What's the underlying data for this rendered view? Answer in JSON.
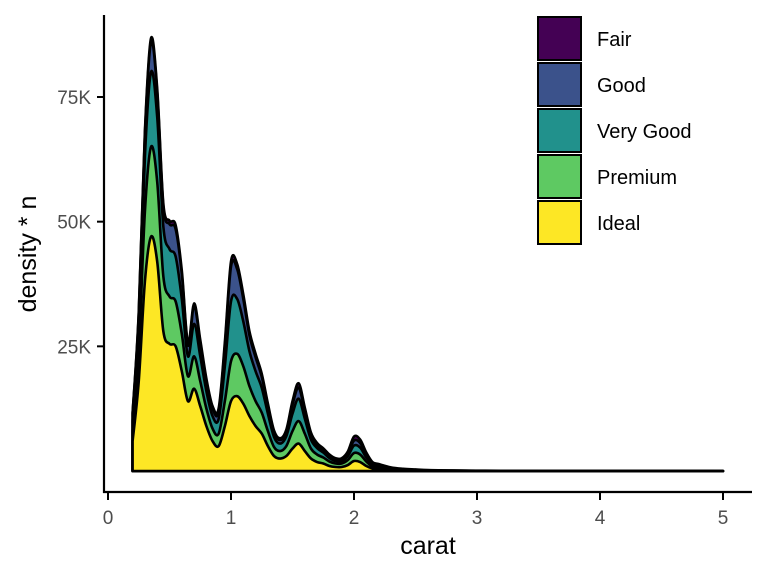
{
  "chart_data": {
    "type": "area",
    "stacked": true,
    "xlabel": "carat",
    "ylabel": "density * n",
    "xlim": [
      0,
      5.25
    ],
    "ylim": [
      -2000,
      91000
    ],
    "xticks": [
      0,
      1,
      2,
      3,
      4,
      5
    ],
    "xtick_labels": [
      "0",
      "1",
      "2",
      "3",
      "4",
      "5"
    ],
    "yticks": [
      25000,
      50000,
      75000
    ],
    "ytick_labels": [
      "25K",
      "50K",
      "75K"
    ],
    "grid": false,
    "legend_position": "top-right",
    "x": [
      0.2,
      0.25,
      0.3,
      0.35,
      0.4,
      0.45,
      0.5,
      0.55,
      0.6,
      0.65,
      0.7,
      0.75,
      0.8,
      0.85,
      0.9,
      0.95,
      1.0,
      1.05,
      1.1,
      1.15,
      1.2,
      1.25,
      1.3,
      1.35,
      1.4,
      1.45,
      1.5,
      1.55,
      1.6,
      1.65,
      1.7,
      1.75,
      1.8,
      1.85,
      1.9,
      1.95,
      2.0,
      2.05,
      2.1,
      2.15,
      2.2,
      2.3,
      2.4,
      2.5,
      2.6,
      2.8,
      3.0,
      3.2,
      3.5,
      4.0,
      4.5,
      5.0
    ],
    "series": [
      {
        "name": "Ideal",
        "color": "#fde725",
        "values": [
          6000,
          18000,
          38000,
          47000,
          42000,
          28000,
          25500,
          25000,
          20000,
          14000,
          16500,
          13000,
          9000,
          6000,
          5000,
          9000,
          14000,
          15000,
          13500,
          11000,
          9000,
          7500,
          5000,
          3000,
          2500,
          3000,
          4500,
          5500,
          4000,
          2500,
          1800,
          1500,
          1000,
          800,
          800,
          1200,
          2000,
          1800,
          1000,
          500,
          400,
          200,
          120,
          80,
          40,
          20,
          10,
          5,
          0,
          0,
          0,
          0
        ]
      },
      {
        "name": "Premium",
        "color": "#5ec962",
        "values": [
          2000,
          6000,
          14000,
          18000,
          16000,
          11000,
          9500,
          9000,
          7500,
          5000,
          6500,
          5000,
          3500,
          2500,
          2500,
          5000,
          8000,
          8500,
          7500,
          6000,
          5000,
          4200,
          3000,
          1800,
          1500,
          2000,
          3500,
          4500,
          3500,
          2000,
          1500,
          1200,
          900,
          700,
          700,
          1000,
          1600,
          1500,
          900,
          400,
          300,
          150,
          90,
          60,
          30,
          20,
          10,
          5,
          0,
          0,
          0,
          0
        ]
      },
      {
        "name": "Very Good",
        "color": "#21918c",
        "values": [
          2000,
          5000,
          11000,
          15000,
          13000,
          10000,
          9500,
          9000,
          7000,
          4000,
          6500,
          5000,
          3500,
          2500,
          3000,
          7000,
          12000,
          11000,
          9000,
          7000,
          6000,
          5000,
          3500,
          2000,
          1500,
          2000,
          3500,
          4500,
          3000,
          1800,
          1300,
          1000,
          700,
          500,
          500,
          800,
          1500,
          1400,
          800,
          400,
          300,
          150,
          90,
          60,
          30,
          20,
          10,
          5,
          0,
          0,
          0,
          0
        ]
      },
      {
        "name": "Good",
        "color": "#3b528b",
        "values": [
          1500,
          2500,
          4500,
          6000,
          5000,
          4000,
          5000,
          5500,
          5000,
          2200,
          3500,
          2800,
          2000,
          1500,
          1500,
          4000,
          7000,
          6000,
          4500,
          3200,
          2800,
          2200,
          1500,
          900,
          700,
          900,
          1800,
          2200,
          1500,
          900,
          600,
          500,
          400,
          300,
          300,
          500,
          1000,
          900,
          500,
          200,
          150,
          80,
          50,
          30,
          20,
          10,
          5,
          0,
          0,
          0,
          0,
          0
        ]
      },
      {
        "name": "Fair",
        "color": "#440154",
        "values": [
          200,
          400,
          600,
          800,
          700,
          600,
          700,
          800,
          700,
          500,
          600,
          500,
          500,
          500,
          600,
          800,
          1000,
          1000,
          900,
          800,
          700,
          600,
          500,
          400,
          350,
          400,
          700,
          900,
          700,
          500,
          400,
          350,
          300,
          250,
          250,
          400,
          800,
          700,
          500,
          300,
          250,
          150,
          100,
          80,
          60,
          40,
          30,
          20,
          15,
          10,
          5,
          0
        ]
      }
    ]
  }
}
